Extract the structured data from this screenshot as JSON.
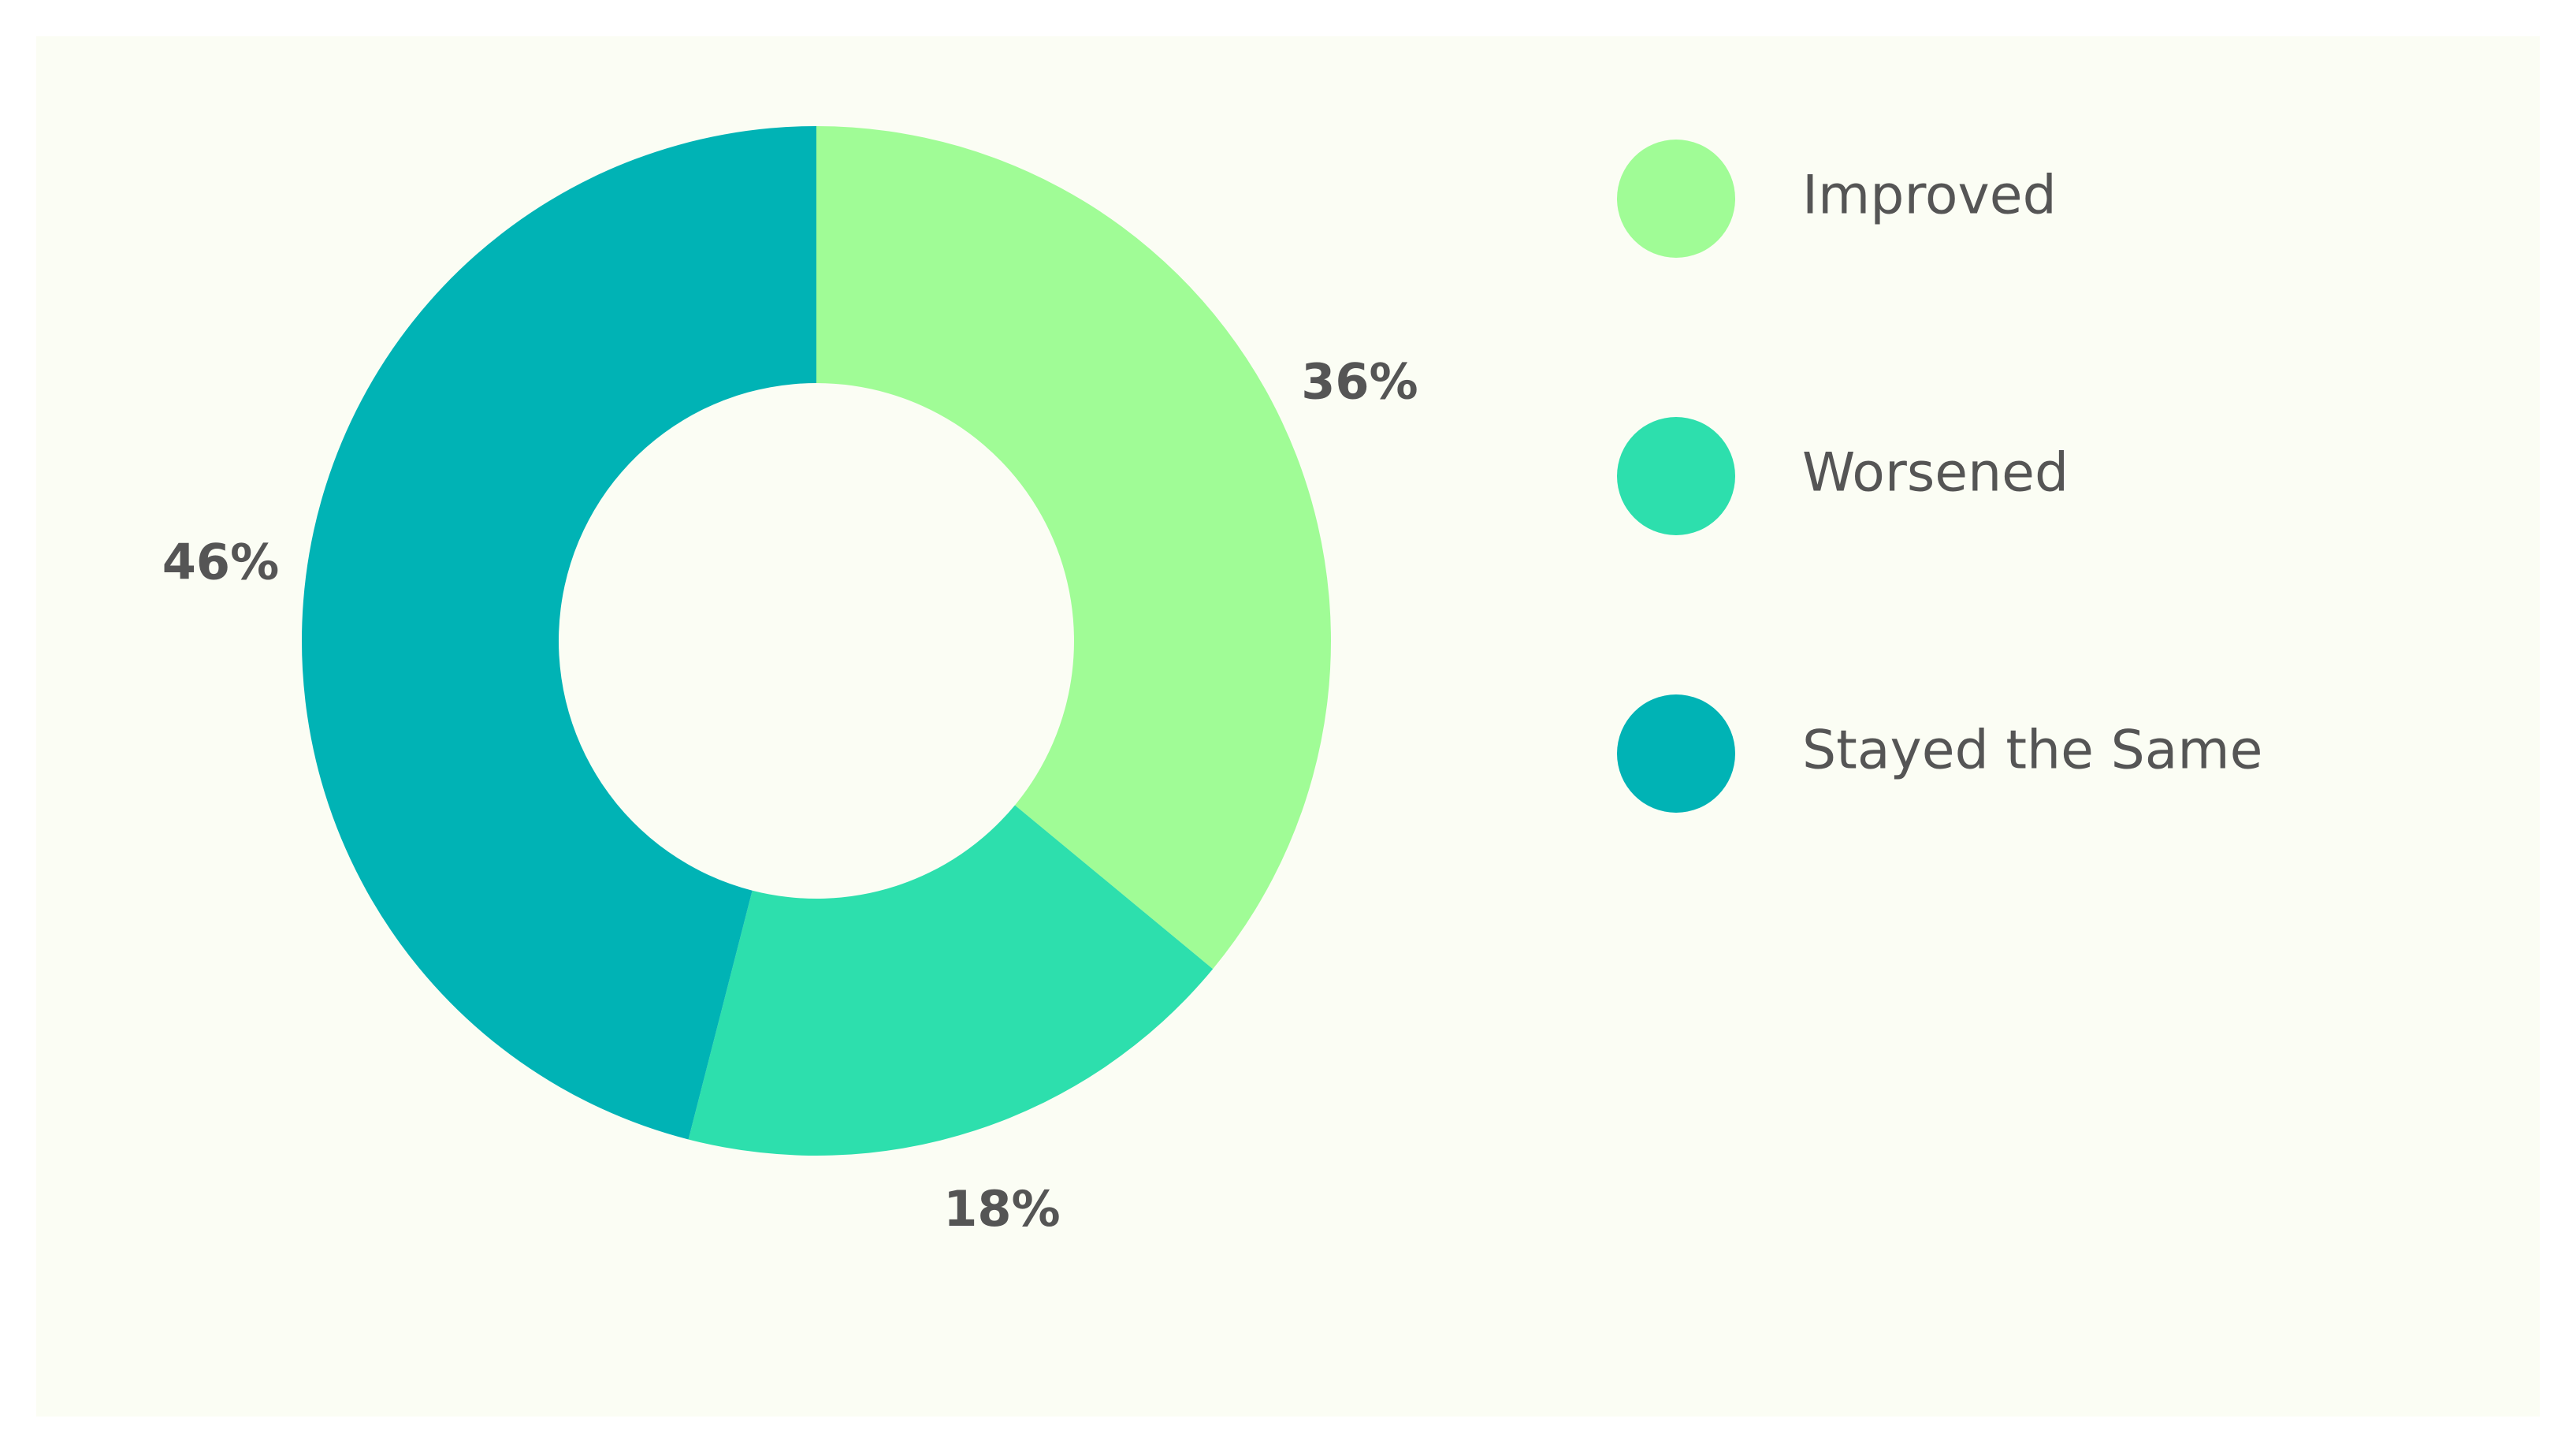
{
  "chart_data": {
    "type": "donut",
    "categories": [
      "Improved",
      "Worsened",
      "Stayed the Same"
    ],
    "values": [
      36,
      18,
      46
    ],
    "value_labels": [
      "36%",
      "18%",
      "46%"
    ],
    "colors": [
      "#a0fc96",
      "#2ddfad",
      "#00b3b5"
    ]
  }
}
